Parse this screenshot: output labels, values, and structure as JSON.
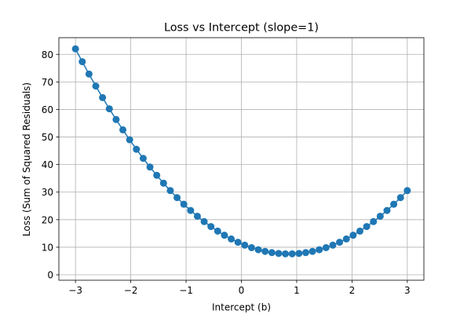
{
  "chart_data": {
    "type": "line",
    "title": "Loss vs Intercept (slope=1)",
    "xlabel": "Intercept (b)",
    "ylabel": "Loss (Sum of Squared Residuals)",
    "xlim": [
      -3.3,
      3.3
    ],
    "ylim": [
      -1.99,
      86.06
    ],
    "xticks": [
      -3,
      -2,
      -1,
      0,
      1,
      2,
      3
    ],
    "yticks": [
      0,
      10,
      20,
      30,
      40,
      50,
      60,
      70,
      80
    ],
    "grid": true,
    "legend": "none",
    "series": [
      {
        "color": "#1f77b4",
        "marker": "circle",
        "x": [
          -3.0,
          -2.877551,
          -2.755102,
          -2.632653,
          -2.510204,
          -2.387755,
          -2.265306,
          -2.142857,
          -2.020408,
          -1.897959,
          -1.77551,
          -1.653061,
          -1.530612,
          -1.408163,
          -1.285714,
          -1.163265,
          -1.040816,
          -0.918367,
          -0.795918,
          -0.673469,
          -0.55102,
          -0.428571,
          -0.306122,
          -0.183673,
          -0.061224,
          0.061224,
          0.183673,
          0.306122,
          0.428571,
          0.55102,
          0.673469,
          0.795918,
          0.918367,
          1.040816,
          1.163265,
          1.285714,
          1.408163,
          1.530612,
          1.653061,
          1.77551,
          1.897959,
          2.020408,
          2.142857,
          2.265306,
          2.387755,
          2.510204,
          2.632653,
          2.755102,
          2.877551,
          3.0
        ],
        "y": [
          82.0,
          77.35,
          72.85,
          68.5,
          64.3,
          60.25,
          56.35,
          52.6,
          49.0,
          45.55,
          42.25,
          39.1,
          36.1,
          33.25,
          30.55,
          28.0,
          25.6,
          23.35,
          21.25,
          19.3,
          17.5,
          15.85,
          14.35,
          13.0,
          11.8,
          10.75,
          9.85,
          9.1,
          8.5,
          8.05,
          7.75,
          7.6,
          7.6,
          7.75,
          8.05,
          8.5,
          9.1,
          9.85,
          10.75,
          11.8,
          13.0,
          14.35,
          15.85,
          17.5,
          19.3,
          21.25,
          23.35,
          25.6,
          28.0,
          30.55
        ]
      }
    ]
  }
}
